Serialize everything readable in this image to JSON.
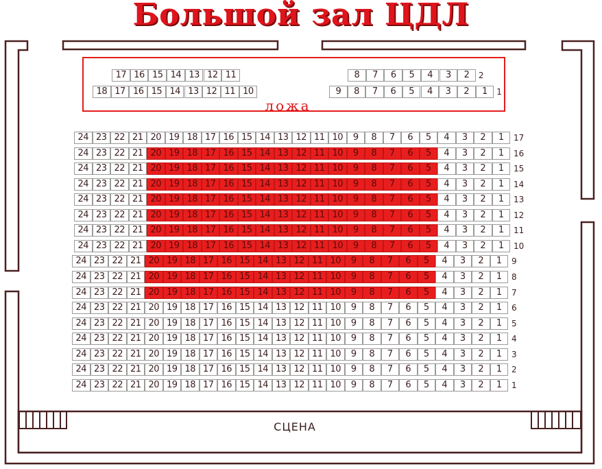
{
  "title": "Большой зал  ЦДЛ",
  "loge": {
    "label": "ложа",
    "rows": [
      {
        "number": "2",
        "left_seats": [
          "17",
          "16",
          "15",
          "14",
          "13",
          "12",
          "11"
        ],
        "right_seats": [
          "8",
          "7",
          "6",
          "5",
          "4",
          "3",
          "2"
        ]
      },
      {
        "number": "1",
        "left_seats": [
          "18",
          "17",
          "16",
          "15",
          "14",
          "13",
          "12",
          "11",
          "10"
        ],
        "right_seats": [
          "9",
          "8",
          "7",
          "6",
          "5",
          "4",
          "3",
          "2",
          "1"
        ]
      }
    ]
  },
  "hall": {
    "rows": [
      "17",
      "16",
      "15",
      "14",
      "13",
      "12",
      "11",
      "10",
      "9",
      "8",
      "7",
      "6",
      "5",
      "4",
      "3",
      "2",
      "1"
    ],
    "seats": [
      "24",
      "23",
      "22",
      "21",
      "20",
      "19",
      "18",
      "17",
      "16",
      "15",
      "14",
      "13",
      "12",
      "11",
      "10",
      "9",
      "8",
      "7",
      "6",
      "5",
      "4",
      "3",
      "2",
      "1"
    ],
    "highlighted": {
      "rows": [
        "16",
        "15",
        "14",
        "13",
        "12",
        "11",
        "10",
        "9",
        "8",
        "7"
      ],
      "seats": [
        "20",
        "19",
        "18",
        "17",
        "16",
        "15",
        "14",
        "13",
        "12",
        "11",
        "10",
        "9",
        "8",
        "7",
        "6",
        "5"
      ],
      "color": "#e81e1e"
    }
  },
  "stage": {
    "label": "СЦЕНА"
  },
  "colors": {
    "title": "#e0141b",
    "wall": "#4a2020",
    "loge_border": "#e51b1b"
  }
}
